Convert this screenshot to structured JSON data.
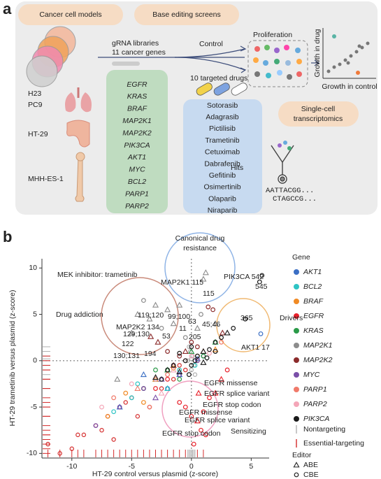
{
  "panel_a": {
    "label": "a",
    "pill_models": "Cancer cell models",
    "pill_screens": "Base editing screens",
    "library_line1": "gRNA libraries",
    "library_line2": "11 cancer genes",
    "control": "Control",
    "proliferation": "Proliferation",
    "growth_drug": "Growth in drug",
    "growth_control": "Growth in control",
    "drugs_title": "10 targeted drugs",
    "cell_lines": [
      "H23",
      "PC9",
      "HT-29",
      "MHH-ES-1"
    ],
    "genes": [
      "EGFR",
      "KRAS",
      "BRAF",
      "MAP2K1",
      "MAP2K2",
      "PIK3CA",
      "AKT1",
      "MYC",
      "BCL2",
      "PARP1",
      "PARP2"
    ],
    "drugs": [
      "Sotorasib",
      "Adagrasib",
      "Pictilisib",
      "Trametinib",
      "Cetuximab",
      "Dabrafenib",
      "Gefitinib",
      "Osimertinib",
      "Olaparib",
      "Niraparib"
    ],
    "pill_sc_line1": "Single-cell",
    "pill_sc_line2": "transcriptomics",
    "hits": "Hits",
    "seq_line1": "AATTACGG...",
    "seq_line2": "CTAGCCG..."
  },
  "chart_data": {
    "type": "scatter",
    "label": "b",
    "xlabel": "HT-29 control versus plasmid (z-score)",
    "ylabel": "HT-29 trametinib versus plasmid (z-score)",
    "xlim": [
      -12.5,
      6.5
    ],
    "ylim": [
      -10.5,
      11
    ],
    "xticks": [
      -10,
      -5,
      0,
      5
    ],
    "yticks": [
      -10,
      -5,
      0,
      5,
      10
    ],
    "legend_title": "Gene",
    "editor_title": "Editor",
    "editors": [
      "ABE",
      "CBE"
    ],
    "series": [
      {
        "name": "AKT1",
        "color": "#3b6fc4",
        "x": [
          -3,
          -1,
          0.5,
          -2,
          5.8,
          -6,
          1,
          -4
        ],
        "values": [
          -2,
          -1.5,
          0.2,
          -3,
          2.9,
          -5,
          0.5,
          -1.5
        ],
        "editor": [
          "CBE",
          "ABE",
          "CBE",
          "CBE",
          "CBE",
          "ABE",
          "CBE",
          "ABE"
        ]
      },
      {
        "name": "BCL2",
        "color": "#2ec4c4",
        "x": [
          -5,
          -4.5,
          -2,
          -1,
          0.3,
          -6.5,
          -3
        ],
        "values": [
          -4,
          -2.5,
          -3,
          -1,
          -0.5,
          -5.5,
          -2
        ],
        "editor": [
          "CBE",
          "CBE",
          "ABE",
          "CBE",
          "CBE",
          "CBE",
          "ABE"
        ]
      },
      {
        "name": "BRAF",
        "color": "#f08a24",
        "x": [
          -5.5,
          -3,
          -1.5,
          0.5,
          2,
          -7,
          -4
        ],
        "values": [
          -3.5,
          -2,
          -0.8,
          0.5,
          1.2,
          -6,
          -4.5
        ],
        "editor": [
          "CBE",
          "ABE",
          "CBE",
          "CBE",
          "ABE",
          "CBE",
          "CBE"
        ]
      },
      {
        "name": "EGFR",
        "color": "#e8202a",
        "x": [
          -1,
          -0.5,
          0,
          0.5,
          1,
          1.5,
          2,
          -2,
          0.8,
          1.2,
          2.5,
          3,
          -3,
          0.2,
          0.6
        ],
        "values": [
          -4.5,
          -5,
          -6,
          -6.5,
          -5.5,
          -4,
          -3.5,
          -2,
          -7.5,
          -8,
          -2,
          -1,
          -3,
          -9,
          -3.5
        ],
        "editor": [
          "CBE",
          "CBE",
          "CBE",
          "ABE",
          "CBE",
          "CBE",
          "ABE",
          "CBE",
          "CBE",
          "CBE",
          "ABE",
          "CBE",
          "CBE",
          "CBE",
          "ABE"
        ]
      },
      {
        "name": "KRAS",
        "color": "#2a9a48",
        "x": [
          -4,
          -2,
          -1,
          0,
          1,
          2,
          -3
        ],
        "values": [
          -3,
          -1,
          -2,
          1,
          0.5,
          2,
          -1
        ],
        "editor": [
          "CBE",
          "ABE",
          "CBE",
          "ABE",
          "CBE",
          "ABE",
          "CBE"
        ]
      },
      {
        "name": "MAP2K1",
        "color": "#8c8c8c",
        "x": [
          -4.5,
          -3.5,
          -3,
          -2.5,
          -2,
          -1.5,
          -5,
          -4,
          1,
          1.2,
          -1,
          0.8,
          0.5,
          2,
          -0.5,
          -6.2
        ],
        "values": [
          5,
          4.5,
          6,
          3.5,
          5.5,
          4,
          3,
          6.5,
          8.8,
          9.5,
          6,
          5,
          3.5,
          4,
          2.5,
          -2
        ],
        "editor": [
          "ABE",
          "ABE",
          "ABE",
          "CBE",
          "ABE",
          "ABE",
          "ABE",
          "CBE",
          "ABE",
          "ABE",
          "ABE",
          "CBE",
          "ABE",
          "ABE",
          "CBE",
          "ABE"
        ]
      },
      {
        "name": "MAP2K2",
        "color": "#8b2b2b",
        "x": [
          -3.4,
          -2.8,
          -2,
          -1,
          -0.5,
          0,
          0.5,
          -1.5,
          1.4,
          1.8,
          2.6
        ],
        "values": [
          2.6,
          2,
          1,
          0.5,
          1,
          2,
          1.5,
          -0.5,
          5.8,
          5.5,
          3
        ],
        "editor": [
          "ABE",
          "ABE",
          "CBE",
          "CBE",
          "ABE",
          "CBE",
          "CBE",
          "ABE",
          "CBE",
          "CBE",
          "ABE"
        ]
      },
      {
        "name": "MYC",
        "color": "#7a4fa8",
        "x": [
          -6,
          -4,
          -2.5,
          -1,
          0.5,
          -8,
          -3
        ],
        "values": [
          -5,
          -3,
          -2,
          -1.5,
          0,
          -7,
          -4
        ],
        "editor": [
          "CBE",
          "CBE",
          "ABE",
          "CBE",
          "CBE",
          "CBE",
          "ABE"
        ]
      },
      {
        "name": "PARP1",
        "color": "#f07a6a",
        "x": [
          -6.5,
          -4.5,
          -2,
          -0.5,
          1,
          2.5,
          -3.5
        ],
        "values": [
          -4,
          -3,
          -1.5,
          0,
          1,
          2,
          -5
        ],
        "editor": [
          "CBE",
          "ABE",
          "CBE",
          "CBE",
          "ABE",
          "CBE",
          "CBE"
        ]
      },
      {
        "name": "PARP2",
        "color": "#f4a6b8",
        "x": [
          -5,
          -3,
          -1.5,
          0,
          1.5,
          -2.5,
          -7.5
        ],
        "values": [
          -2.5,
          -2,
          -1,
          0.5,
          0.8,
          -3.5,
          -5
        ],
        "editor": [
          "CBE",
          "CBE",
          "ABE",
          "CBE",
          "CBE",
          "ABE",
          "CBE"
        ]
      },
      {
        "name": "PIK3CA",
        "color": "#1a1a1a",
        "x": [
          -2,
          -1.5,
          -1,
          -0.5,
          0,
          0.5,
          1,
          1.5,
          2,
          2.5,
          3,
          -2.5,
          -1,
          0,
          1,
          2,
          3.5,
          4.5,
          5.7,
          5.9,
          -3,
          0.3,
          -0.2,
          1.3
        ],
        "values": [
          -1,
          -0.5,
          -1.2,
          0,
          -0.5,
          0.5,
          1,
          1.2,
          2,
          2.5,
          3,
          -2,
          0.8,
          1.5,
          -0.2,
          1,
          3.5,
          4.5,
          8.5,
          9.2,
          -1.8,
          0,
          -1.5,
          0.3
        ],
        "editor": [
          "CBE",
          "CBE",
          "ABE",
          "CBE",
          "CBE",
          "CBE",
          "ABE",
          "CBE",
          "CBE",
          "CBE",
          "ABE",
          "CBE",
          "CBE",
          "CBE",
          "ABE",
          "CBE",
          "CBE",
          "CBE",
          "CBE",
          "CBE",
          "ABE",
          "CBE",
          "CBE",
          "CBE"
        ]
      }
    ],
    "controls": [
      {
        "name": "Nontargeting",
        "color": "#b0b0b0",
        "x": [
          0,
          0.2,
          -0.3,
          0.1,
          -0.1,
          0.3,
          -0.2,
          0
        ],
        "values": [
          -1,
          -0.5,
          0,
          0.5,
          1,
          -1.5,
          1.5,
          0.2
        ]
      },
      {
        "name": "Essential-targeting",
        "color": "#d42a2a",
        "x": [
          -12,
          -10,
          -9,
          -8,
          -7,
          -6.5,
          -6,
          -5,
          -4.5,
          -4,
          -3.5,
          -3,
          -2.5,
          -2,
          -1.5,
          -1,
          -0.5,
          0.5,
          1,
          -11,
          -9.5,
          -7.5,
          -5.5
        ],
        "values": [
          -9,
          -9.5,
          -8,
          -7,
          -6,
          -8.5,
          -5,
          -4,
          -6,
          -3,
          -5,
          -2,
          -3,
          -1,
          -2,
          -0.5,
          -1,
          0,
          0.5,
          -10,
          -8,
          -7.5,
          -4.5
        ]
      }
    ],
    "annotations": [
      "MEK inhibitor: trametinib",
      "Canonical drug",
      "resistance",
      "Drug addiction",
      "Drivers",
      "Sensitizing",
      "MAP2K1 115",
      "115",
      "PIK3CA 542",
      "545",
      "365",
      "AKT1 17",
      "MAP2K2 134",
      "119;120",
      "129;130",
      "122",
      "194",
      "130;131",
      "53",
      "99;100",
      "11",
      "63",
      "45;46",
      "205",
      "EGFR missense",
      "EGFR splice variant",
      "EGFR stop codon",
      "EGFR missense",
      "EGFR splice variant",
      "EGFR stop codon"
    ]
  }
}
